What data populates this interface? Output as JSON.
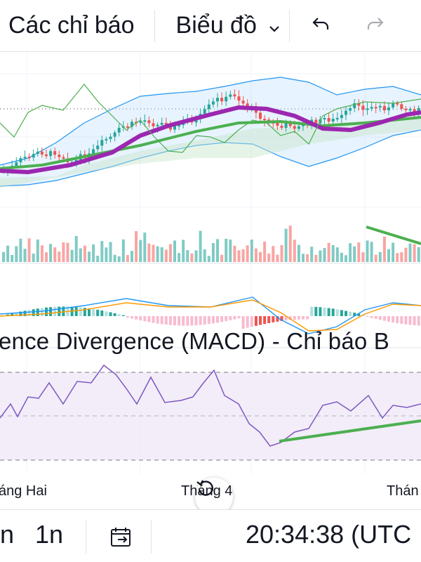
{
  "toolbar": {
    "indicators_label": "Các chỉ báo",
    "chart_label": "Biểu đồ"
  },
  "chart": {
    "macd_title": "ence Divergence (MACD) - Chỉ báo B",
    "x_labels": [
      "áng Hai",
      "Tháng 4",
      "Thán"
    ]
  },
  "bottombar": {
    "range_a": "n",
    "range_b": "1n",
    "time": "20:34:38 (UTC"
  },
  "colors": {
    "up": "#26a69a",
    "down": "#ef5350",
    "ma_purple": "#9c27b0",
    "ma_green": "#4caf50",
    "rsi": "#7e57c2",
    "bb": "#2196f3"
  },
  "icons": {
    "chart_dropdown": "chevron-down-icon",
    "undo": "undo-icon",
    "redo": "redo-icon",
    "date_range": "calendar-range-icon",
    "reset": "reset-icon"
  }
}
